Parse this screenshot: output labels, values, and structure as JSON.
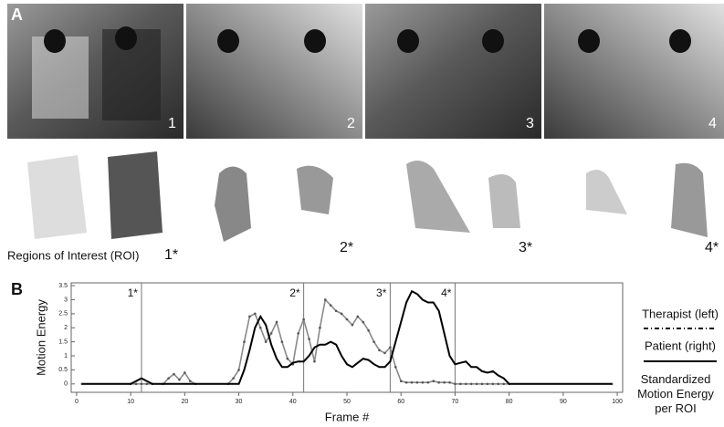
{
  "panel_a": {
    "label": "A",
    "frames": [
      "1",
      "2",
      "3",
      "4"
    ]
  },
  "roi": {
    "labels": [
      "1*",
      "2*",
      "3*",
      "4*"
    ],
    "caption": "Regions of Interest (ROI)"
  },
  "panel_b": {
    "label": "B"
  },
  "chart_data": {
    "type": "line",
    "xlabel": "Frame #",
    "ylabel": "Motion Energy",
    "legend_note": "Standardized Motion Energy per ROI",
    "xlim": [
      -1,
      101
    ],
    "ylim": [
      -0.3,
      3.6
    ],
    "xticks": [
      0,
      10,
      20,
      30,
      40,
      50,
      60,
      70,
      80,
      90,
      100
    ],
    "yticks": [
      0,
      0.5,
      1,
      1.5,
      2,
      2.5,
      3,
      3.5
    ],
    "markers": [
      {
        "x": 12,
        "label": "1*"
      },
      {
        "x": 42,
        "label": "2*"
      },
      {
        "x": 58,
        "label": "3*"
      },
      {
        "x": 70,
        "label": "4*"
      }
    ],
    "x": [
      1,
      10,
      11,
      12,
      13,
      14,
      16,
      17,
      18,
      19,
      20,
      21,
      22,
      28,
      29,
      30,
      31,
      32,
      33,
      34,
      35,
      36,
      37,
      38,
      39,
      40,
      41,
      42,
      43,
      44,
      45,
      46,
      47,
      48,
      49,
      50,
      51,
      52,
      53,
      54,
      55,
      56,
      57,
      58,
      59,
      60,
      61,
      62,
      63,
      64,
      65,
      66,
      67,
      68,
      69,
      70,
      71,
      72,
      73,
      74,
      75,
      76,
      77,
      78,
      79,
      80,
      99
    ],
    "series": [
      {
        "name": "Therapist (left)",
        "color": "#8a8a8a",
        "dash": true,
        "values": [
          0,
          0,
          0,
          0,
          0,
          0,
          0,
          0.2,
          0.35,
          0.15,
          0.4,
          0.1,
          0,
          0,
          0.2,
          0.5,
          1.5,
          2.4,
          2.5,
          2.0,
          1.5,
          1.8,
          2.2,
          1.5,
          0.9,
          0.7,
          1.8,
          2.3,
          1.6,
          0.8,
          2.0,
          3.0,
          2.8,
          2.6,
          2.5,
          2.3,
          2.1,
          2.4,
          2.2,
          1.9,
          1.5,
          1.2,
          1.1,
          1.3,
          0.6,
          0.1,
          0.05,
          0.05,
          0.05,
          0.05,
          0.05,
          0.1,
          0.05,
          0.05,
          0.05,
          0,
          0,
          0,
          0,
          0,
          0,
          0,
          0,
          0,
          0,
          0,
          0
        ]
      },
      {
        "name": "Patient (right)",
        "color": "#000000",
        "dash": false,
        "values": [
          0,
          0,
          0.1,
          0.2,
          0.1,
          0,
          0,
          0,
          0,
          0,
          0,
          0,
          0,
          0,
          0,
          0,
          0.5,
          1.2,
          2.0,
          2.4,
          2.1,
          1.4,
          0.9,
          0.6,
          0.6,
          0.75,
          0.8,
          0.8,
          1.0,
          1.3,
          1.4,
          1.4,
          1.5,
          1.4,
          1.0,
          0.7,
          0.6,
          0.75,
          0.9,
          0.85,
          0.7,
          0.6,
          0.6,
          0.8,
          1.5,
          2.2,
          2.9,
          3.3,
          3.2,
          3.0,
          2.9,
          2.9,
          2.6,
          1.8,
          1.0,
          0.7,
          0.75,
          0.8,
          0.6,
          0.6,
          0.45,
          0.4,
          0.45,
          0.3,
          0.2,
          0,
          0
        ]
      }
    ]
  }
}
